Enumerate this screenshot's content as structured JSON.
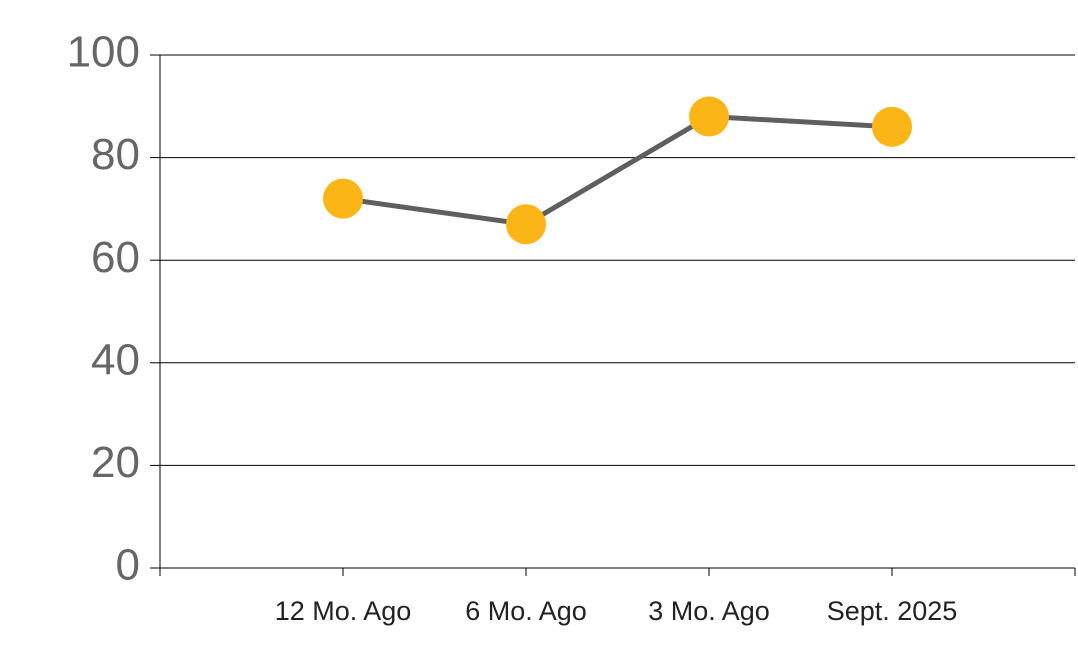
{
  "chart_data": {
    "type": "line",
    "categories": [
      "12 Mo. Ago",
      "6 Mo. Ago",
      "3 Mo. Ago",
      "Sept. 2025"
    ],
    "series": [
      {
        "values": [
          72,
          67,
          88,
          86
        ],
        "color": "#5f5f5f",
        "marker_color": "#fbb516"
      }
    ],
    "ylim": [
      0,
      100
    ],
    "yticks": [
      0,
      20,
      40,
      60,
      80,
      100
    ],
    "grid": true
  }
}
